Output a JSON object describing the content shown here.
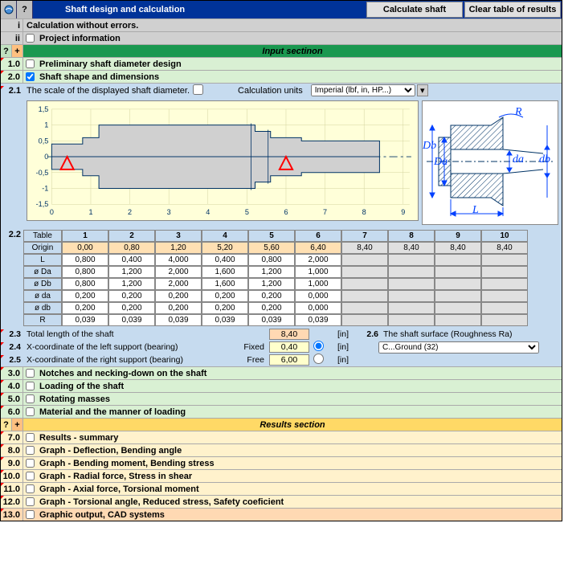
{
  "header": {
    "title": "Shaft design and calculation",
    "calc_btn": "Calculate shaft",
    "clear_btn": "Clear table of results"
  },
  "rows": {
    "i": {
      "num": "i",
      "label": "Calculation without errors."
    },
    "ii": {
      "num": "ii",
      "label": "Project information"
    },
    "input_section": "Input sectinon",
    "r1_0": {
      "num": "1.0",
      "label": "Preliminary shaft diameter design"
    },
    "r2_0": {
      "num": "2.0",
      "label": "Shaft shape and dimensions"
    },
    "r2_1": {
      "num": "2.1",
      "label": "The scale of the displayed shaft diameter.",
      "calc_units": "Calculation units",
      "units_sel": "Imperial (lbf, in, HP...)"
    },
    "r2_2": {
      "num": "2.2"
    },
    "r2_3": {
      "num": "2.3",
      "label": "Total length of the shaft",
      "val": "8,40",
      "unit": "[in]"
    },
    "r2_4": {
      "num": "2.4",
      "label": "X-coordinate of the left support (bearing)",
      "fixed": "Fixed",
      "val": "0,40",
      "unit": "[in]"
    },
    "r2_5": {
      "num": "2.5",
      "label": "X-coordinate of the right support (bearing)",
      "fixed": "Free",
      "val": "6,00",
      "unit": "[in]"
    },
    "r2_6": {
      "num": "2.6",
      "label": "The shaft surface (Roughness Ra)",
      "sel": "C...Ground  (32)"
    },
    "r3_0": {
      "num": "3.0",
      "label": "Notches and necking-down on the shaft"
    },
    "r4_0": {
      "num": "4.0",
      "label": "Loading of the shaft"
    },
    "r5_0": {
      "num": "5.0",
      "label": "Rotating masses"
    },
    "r6_0": {
      "num": "6.0",
      "label": "Material and the manner of loading"
    },
    "results_section": "Results section",
    "r7_0": {
      "num": "7.0",
      "label": "Results - summary"
    },
    "r8_0": {
      "num": "8.0",
      "label": "Graph - Deflection, Bending angle"
    },
    "r9_0": {
      "num": "9.0",
      "label": "Graph - Bending moment, Bending stress"
    },
    "r10_0": {
      "num": "10.0",
      "label": "Graph - Radial force, Stress in shear"
    },
    "r11_0": {
      "num": "11.0",
      "label": "Graph - Axial force,   Torsional moment"
    },
    "r12_0": {
      "num": "12.0",
      "label": "Graph - Torsional angle,   Reduced stress,   Safety coeficient"
    },
    "r13_0": {
      "num": "13.0",
      "label": "Graphic output, CAD systems"
    }
  },
  "table": {
    "hdr_table": "Table",
    "hdr_origin": "Origin",
    "cols": [
      "1",
      "2",
      "3",
      "4",
      "5",
      "6",
      "7",
      "8",
      "9",
      "10"
    ],
    "origin": [
      "0,00",
      "0,80",
      "1,20",
      "5,20",
      "5,60",
      "6,40",
      "8,40",
      "8,40",
      "8,40",
      "8,40"
    ],
    "rows": [
      {
        "name": "L",
        "vals": [
          "0,800",
          "0,400",
          "4,000",
          "0,400",
          "0,800",
          "2,000",
          "",
          "",
          "",
          ""
        ]
      },
      {
        "name": "ø Da",
        "vals": [
          "0,800",
          "1,200",
          "2,000",
          "1,600",
          "1,200",
          "1,000",
          "",
          "",
          "",
          ""
        ]
      },
      {
        "name": "ø Db",
        "vals": [
          "0,800",
          "1,200",
          "2,000",
          "1,600",
          "1,200",
          "1,000",
          "",
          "",
          "",
          ""
        ]
      },
      {
        "name": "ø da",
        "vals": [
          "0,200",
          "0,200",
          "0,200",
          "0,200",
          "0,200",
          "0,000",
          "",
          "",
          "",
          ""
        ]
      },
      {
        "name": "ø db",
        "vals": [
          "0,200",
          "0,200",
          "0,200",
          "0,200",
          "0,200",
          "0,000",
          "",
          "",
          "",
          ""
        ]
      },
      {
        "name": "R",
        "vals": [
          "0,039",
          "0,039",
          "0,039",
          "0,039",
          "0,039",
          "0,039",
          "",
          "",
          "",
          ""
        ]
      }
    ]
  },
  "chart": {
    "y_ticks": [
      "1,5",
      "1",
      "0,5",
      "0",
      "-0,5",
      "-1",
      "-1,5"
    ],
    "x_ticks": [
      "0",
      "1",
      "2",
      "3",
      "4",
      "5",
      "6",
      "7",
      "8",
      "9"
    ],
    "bg": "#ffffd9",
    "grid": "#d4d4a0",
    "shaft_fill": "#d0d0d0"
  },
  "diagram": {
    "labels": {
      "R": "R",
      "Db": "Db",
      "Da": "Da",
      "da": "da",
      "db": "db",
      "L": "L"
    }
  },
  "colors": {
    "header_bg": "#003399",
    "green_hdr": "#1a9850",
    "green_light": "#d9f0d3",
    "blue_light": "#c6dbef",
    "yellow_hdr": "#ffd966",
    "yellow_light": "#fff2cc",
    "orange_light": "#ffd9b3"
  }
}
